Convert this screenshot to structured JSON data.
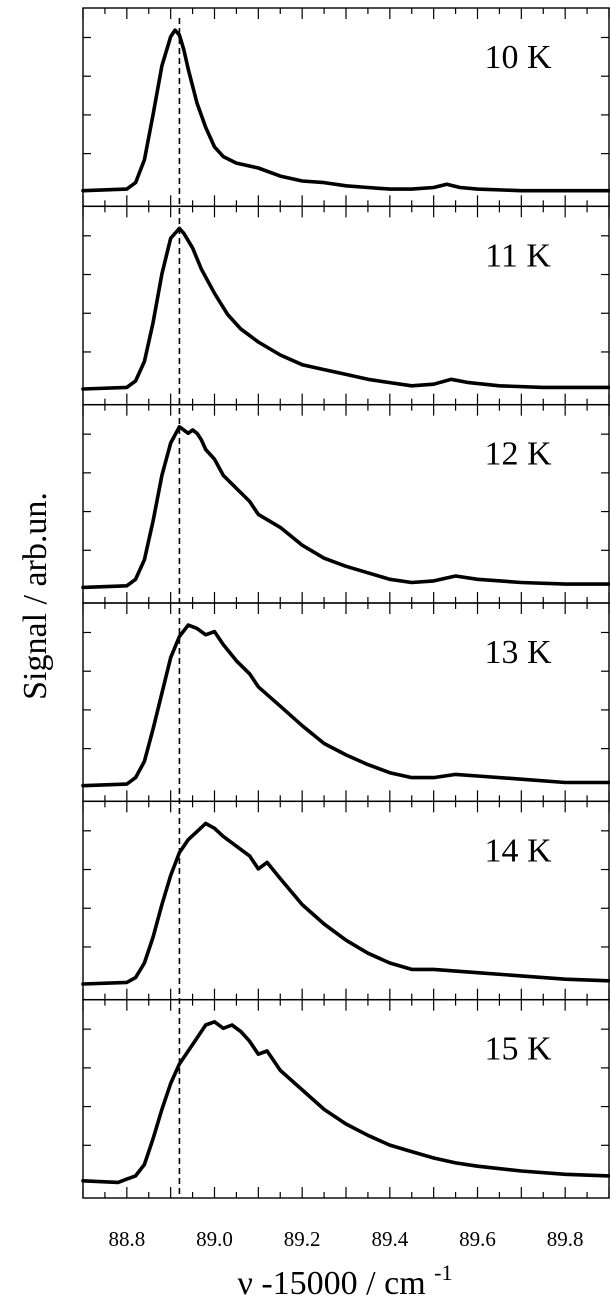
{
  "chart_data": {
    "type": "line",
    "layout": "stacked-panels",
    "xlabel": "ν -15000 / cm",
    "xlabel_sup": "-1",
    "ylabel": "Signal / arb.un.",
    "xlim": [
      88.7,
      89.9
    ],
    "x_ticks": [
      88.8,
      89.0,
      89.2,
      89.4,
      89.6,
      89.8
    ],
    "x_tick_labels": [
      "88.8",
      "89.0",
      "89.2",
      "89.4",
      "89.6",
      "89.8"
    ],
    "reference_line_x": 88.92,
    "grid": false,
    "panels": [
      {
        "label": "10 K",
        "ylim": [
          0,
          1.05
        ],
        "x": [
          88.7,
          88.8,
          88.82,
          88.84,
          88.86,
          88.88,
          88.9,
          88.91,
          88.92,
          88.93,
          88.94,
          88.96,
          88.98,
          89.0,
          89.02,
          89.05,
          89.1,
          89.15,
          89.2,
          89.25,
          89.3,
          89.35,
          89.4,
          89.45,
          89.5,
          89.53,
          89.56,
          89.6,
          89.7,
          89.8,
          89.9
        ],
        "y": [
          0.01,
          0.02,
          0.06,
          0.2,
          0.48,
          0.78,
          0.96,
          1.0,
          0.97,
          0.88,
          0.76,
          0.55,
          0.4,
          0.28,
          0.22,
          0.18,
          0.15,
          0.1,
          0.07,
          0.06,
          0.04,
          0.03,
          0.02,
          0.02,
          0.03,
          0.05,
          0.03,
          0.02,
          0.01,
          0.01,
          0.01
        ]
      },
      {
        "label": "11 K",
        "ylim": [
          0,
          1.05
        ],
        "x": [
          88.7,
          88.8,
          88.82,
          88.84,
          88.86,
          88.88,
          88.9,
          88.92,
          88.93,
          88.95,
          88.97,
          89.0,
          89.03,
          89.06,
          89.1,
          89.15,
          89.2,
          89.25,
          89.3,
          89.35,
          89.4,
          89.45,
          89.5,
          89.54,
          89.58,
          89.65,
          89.75,
          89.9
        ],
        "y": [
          0.01,
          0.02,
          0.06,
          0.18,
          0.42,
          0.72,
          0.94,
          1.0,
          0.97,
          0.88,
          0.75,
          0.6,
          0.47,
          0.38,
          0.3,
          0.22,
          0.16,
          0.13,
          0.1,
          0.07,
          0.05,
          0.03,
          0.04,
          0.07,
          0.05,
          0.03,
          0.02,
          0.02
        ]
      },
      {
        "label": "12 K",
        "ylim": [
          0,
          1.05
        ],
        "x": [
          88.7,
          88.8,
          88.82,
          88.84,
          88.86,
          88.88,
          88.9,
          88.92,
          88.93,
          88.94,
          88.95,
          88.96,
          88.97,
          88.98,
          89.0,
          89.02,
          89.05,
          89.08,
          89.1,
          89.15,
          89.2,
          89.25,
          89.3,
          89.35,
          89.4,
          89.45,
          89.5,
          89.55,
          89.6,
          89.7,
          89.8,
          89.9
        ],
        "y": [
          0.01,
          0.02,
          0.06,
          0.18,
          0.42,
          0.7,
          0.9,
          1.0,
          0.98,
          0.96,
          0.98,
          0.96,
          0.92,
          0.86,
          0.8,
          0.7,
          0.62,
          0.54,
          0.46,
          0.38,
          0.27,
          0.19,
          0.14,
          0.1,
          0.06,
          0.04,
          0.05,
          0.08,
          0.06,
          0.04,
          0.03,
          0.03
        ]
      },
      {
        "label": "13 K",
        "ylim": [
          0,
          1.05
        ],
        "x": [
          88.7,
          88.8,
          88.82,
          88.84,
          88.86,
          88.88,
          88.9,
          88.92,
          88.94,
          88.96,
          88.98,
          89.0,
          89.02,
          89.05,
          89.08,
          89.1,
          89.15,
          89.2,
          89.25,
          89.3,
          89.35,
          89.4,
          89.45,
          89.5,
          89.55,
          89.6,
          89.7,
          89.8,
          89.9
        ],
        "y": [
          0.01,
          0.02,
          0.06,
          0.16,
          0.36,
          0.58,
          0.8,
          0.93,
          1.0,
          0.98,
          0.94,
          0.96,
          0.88,
          0.78,
          0.7,
          0.62,
          0.5,
          0.38,
          0.27,
          0.2,
          0.14,
          0.09,
          0.06,
          0.06,
          0.08,
          0.07,
          0.05,
          0.03,
          0.03
        ]
      },
      {
        "label": "14 K",
        "ylim": [
          0,
          1.05
        ],
        "x": [
          88.7,
          88.8,
          88.82,
          88.84,
          88.86,
          88.88,
          88.9,
          88.92,
          88.94,
          88.96,
          88.98,
          89.0,
          89.02,
          89.05,
          89.08,
          89.1,
          89.12,
          89.15,
          89.2,
          89.25,
          89.3,
          89.35,
          89.4,
          89.45,
          89.5,
          89.55,
          89.6,
          89.7,
          89.8,
          89.9
        ],
        "y": [
          0.01,
          0.02,
          0.05,
          0.14,
          0.3,
          0.5,
          0.68,
          0.82,
          0.9,
          0.95,
          1.0,
          0.97,
          0.92,
          0.86,
          0.8,
          0.72,
          0.76,
          0.66,
          0.5,
          0.38,
          0.28,
          0.2,
          0.14,
          0.1,
          0.1,
          0.09,
          0.08,
          0.06,
          0.04,
          0.03
        ]
      },
      {
        "label": "15 K",
        "ylim": [
          0,
          1.05
        ],
        "x": [
          88.7,
          88.78,
          88.8,
          88.82,
          88.84,
          88.86,
          88.88,
          88.9,
          88.92,
          88.94,
          88.96,
          88.98,
          89.0,
          89.02,
          89.04,
          89.06,
          89.08,
          89.1,
          89.12,
          89.15,
          89.2,
          89.25,
          89.3,
          89.35,
          89.4,
          89.45,
          89.5,
          89.55,
          89.6,
          89.7,
          89.8,
          89.9
        ],
        "y": [
          0.02,
          0.01,
          0.03,
          0.05,
          0.12,
          0.28,
          0.46,
          0.62,
          0.74,
          0.82,
          0.9,
          0.98,
          1.0,
          0.96,
          0.98,
          0.94,
          0.88,
          0.8,
          0.82,
          0.7,
          0.58,
          0.46,
          0.37,
          0.3,
          0.24,
          0.2,
          0.16,
          0.13,
          0.11,
          0.08,
          0.06,
          0.05
        ]
      }
    ]
  }
}
